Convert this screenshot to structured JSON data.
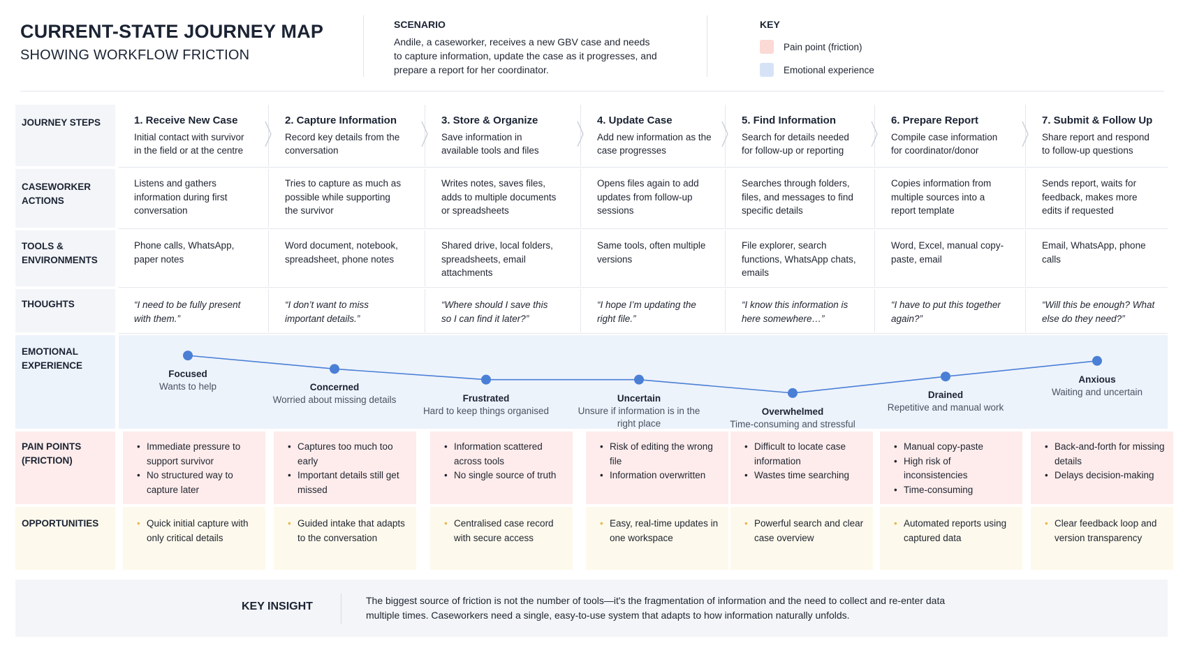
{
  "header": {
    "title": "CURRENT-STATE JOURNEY MAP",
    "subtitle": "SHOWING WORKFLOW FRICTION",
    "scenario_heading": "SCENARIO",
    "scenario_text": "Andile, a caseworker, receives a new GBV case and needs to capture information, update the case as it progresses, and prepare a report for her coordinator.",
    "key_heading": "KEY",
    "key_items": [
      {
        "label": "Pain point (friction)",
        "color": "#fbd9d5"
      },
      {
        "label": "Emotional experience",
        "color": "#d6e3f7"
      }
    ]
  },
  "row_labels": {
    "steps": "JOURNEY STEPS",
    "actions": "CASEWORKER ACTIONS",
    "tools": "TOOLS & ENVIRONMENTS",
    "thoughts": "THOUGHTS",
    "emotion": "EMOTIONAL EXPERIENCE",
    "pain": "PAIN POINTS (FRICTION)",
    "opportunities": "OPPORTUNITIES"
  },
  "steps": [
    {
      "title": "1. Receive New Case",
      "desc": "Initial contact with survivor in the field or at the centre",
      "action": "Listens and gathers information during first conversation",
      "tools": "Phone calls, WhatsApp, paper notes",
      "thought": "“I need to be fully present with them.”",
      "emotion": "Focused",
      "emotion_note": "Wants to help",
      "emotion_level": 0.92,
      "pain": [
        "Immediate pressure to support survivor",
        "No structured way to capture later"
      ],
      "opportunity": [
        "Quick initial capture with only critical details"
      ]
    },
    {
      "title": "2. Capture Information",
      "desc": "Record key details from the conversation",
      "action": "Tries to capture as much as possible while supporting the survivor",
      "tools": "Word document, notebook, spreadsheet, phone notes",
      "thought": "“I don’t want to miss important details.”",
      "emotion": "Concerned",
      "emotion_note": "Worried about missing details",
      "emotion_level": 0.62,
      "pain": [
        "Captures too much too early",
        "Important details still get missed"
      ],
      "opportunity": [
        "Guided intake that adapts to the conversation"
      ]
    },
    {
      "title": "3. Store & Organize",
      "desc": "Save information in available tools and files",
      "action": "Writes notes, saves files, adds to multiple documents or spreadsheets",
      "tools": "Shared drive, local folders, spreadsheets, email attachments",
      "thought": "“Where should I save this so I can find it later?”",
      "emotion": "Frustrated",
      "emotion_note": "Hard to keep things organised",
      "emotion_level": 0.38,
      "pain": [
        "Information scattered across tools",
        "No single source of truth"
      ],
      "opportunity": [
        "Centralised case record with secure access"
      ]
    },
    {
      "title": "4. Update Case",
      "desc": "Add new information as the case progresses",
      "action": "Opens files again to add updates from follow-up sessions",
      "tools": "Same tools, often multiple versions",
      "thought": "“I hope I’m updating the right file.”",
      "emotion": "Uncertain",
      "emotion_note": "Unsure if information is in the right place",
      "emotion_level": 0.38,
      "pain": [
        "Risk of editing the wrong file",
        "Information overwritten"
      ],
      "opportunity": [
        "Easy, real-time updates in one workspace"
      ]
    },
    {
      "title": "5. Find Information",
      "desc": "Search for details needed for follow-up or reporting",
      "action": "Searches through folders, files, and messages to find specific details",
      "tools": "File explorer, search functions, WhatsApp chats, emails",
      "thought": "“I know this information is here somewhere…”",
      "emotion": "Overwhelmed",
      "emotion_note": "Time-consuming and stressful",
      "emotion_level": 0.08,
      "pain": [
        "Difficult to locate case information",
        "Wastes time searching"
      ],
      "opportunity": [
        "Powerful search and clear case overview"
      ]
    },
    {
      "title": "6. Prepare Report",
      "desc": "Compile case information for coordinator/donor",
      "action": "Copies information from multiple sources into a report template",
      "tools": "Word, Excel, manual copy-paste, email",
      "thought": "“I have to put this together again?”",
      "emotion": "Drained",
      "emotion_note": "Repetitive and manual work",
      "emotion_level": 0.45,
      "pain": [
        "Manual copy-paste",
        "High risk of inconsistencies",
        "Time-consuming"
      ],
      "opportunity": [
        "Automated reports using captured data"
      ]
    },
    {
      "title": "7. Submit & Follow Up",
      "desc": "Share report and respond to follow-up questions",
      "action": "Sends report, waits for feedback, makes more edits if requested",
      "tools": "Email, WhatsApp, phone calls",
      "thought": "“Will this be enough? What else do they need?”",
      "emotion": "Anxious",
      "emotion_note": "Waiting and uncertain",
      "emotion_level": 0.8,
      "pain": [
        "Back-and-forth for missing details",
        "Delays decision-making"
      ],
      "opportunity": [
        "Clear feedback loop and version transparency"
      ]
    }
  ],
  "insight": {
    "heading": "KEY INSIGHT",
    "text": "The biggest source of friction is not the number of tools—it's the fragmentation of information and the need to collect and re-enter data multiple times. Caseworkers need a single, easy-to-use system that adapts to how information naturally unfolds."
  },
  "colors": {
    "pain_bg": "#fdeceb",
    "opportunity_bg": "#fdf9ec",
    "emotion_bg": "#edf3fb",
    "line": "#4a7fd6",
    "opportunity_bullet": "#e7b84e"
  }
}
